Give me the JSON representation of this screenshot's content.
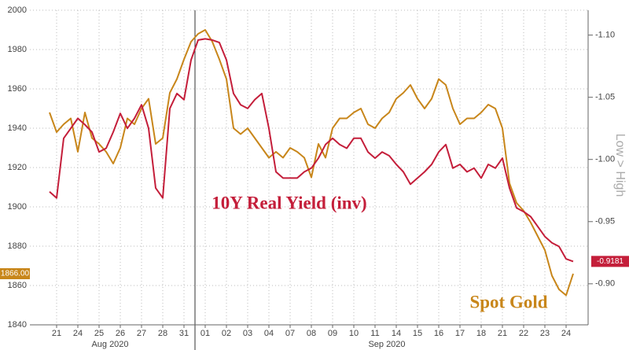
{
  "chart_data": {
    "type": "line",
    "categories": [
      null,
      "21",
      null,
      null,
      "24",
      null,
      null,
      "25",
      null,
      null,
      "26",
      null,
      null,
      "27",
      null,
      null,
      "28",
      null,
      null,
      "31",
      null,
      null,
      "01",
      null,
      null,
      "02",
      null,
      null,
      "03",
      null,
      null,
      "04",
      null,
      null,
      "07",
      null,
      null,
      "08",
      null,
      null,
      "09",
      null,
      null,
      "10",
      null,
      null,
      "11",
      null,
      null,
      "14",
      null,
      null,
      "15",
      null,
      null,
      "16",
      null,
      null,
      "17",
      null,
      null,
      "18",
      null,
      null,
      "21",
      null,
      null,
      "22",
      null,
      null,
      "23",
      null,
      null,
      "24",
      null
    ],
    "month_labels": [
      "Aug 2020",
      "Sep 2020"
    ],
    "series": [
      {
        "name": "Spot Gold",
        "color": "#c8861a",
        "end_label": "1866.00",
        "values": [
          1948,
          1938,
          1942,
          1945,
          1928,
          1948,
          1935,
          1932,
          1928,
          1922,
          1930,
          1945,
          1942,
          1950,
          1955,
          1932,
          1935,
          1958,
          1965,
          1975,
          1984,
          1988,
          1990,
          1984,
          1975,
          1965,
          1940,
          1937,
          1940,
          1935,
          1930,
          1925,
          1928,
          1925,
          1930,
          1928,
          1925,
          1915,
          1932,
          1925,
          1940,
          1945,
          1945,
          1948,
          1950,
          1942,
          1940,
          1945,
          1948,
          1955,
          1958,
          1962,
          1955,
          1950,
          1955,
          1965,
          1962,
          1950,
          1942,
          1945,
          1945,
          1948,
          1952,
          1950,
          1940,
          1912,
          1902,
          1898,
          1892,
          1885,
          1878,
          1865,
          1858,
          1855,
          1866
        ]
      },
      {
        "name": "10Y Real Yield (inv)",
        "color": "#c41e3a",
        "axis": "y2",
        "end_label": "-0.9181",
        "values": [
          -0.974,
          -0.969,
          -1.017,
          -1.025,
          -1.033,
          -1.028,
          -1.022,
          -1.006,
          -1.009,
          -1.022,
          -1.037,
          -1.025,
          -1.033,
          -1.044,
          -1.025,
          -0.977,
          -0.969,
          -1.041,
          -1.053,
          -1.048,
          -1.08,
          -1.096,
          -1.097,
          -1.096,
          -1.094,
          -1.08,
          -1.053,
          -1.044,
          -1.041,
          -1.048,
          -1.053,
          -1.025,
          -0.99,
          -0.985,
          -0.985,
          -0.985,
          -0.99,
          -0.993,
          -1.001,
          -1.012,
          -1.017,
          -1.012,
          -1.009,
          -1.017,
          -1.017,
          -1.006,
          -1.001,
          -1.006,
          -1.003,
          -0.996,
          -0.99,
          -0.98,
          -0.985,
          -0.99,
          -0.996,
          -1.006,
          -1.012,
          -0.993,
          -0.996,
          -0.99,
          -0.993,
          -0.985,
          -0.996,
          -0.993,
          -1.001,
          -0.977,
          -0.961,
          -0.958,
          -0.954,
          -0.946,
          -0.938,
          -0.933,
          -0.93,
          -0.92,
          -0.918
        ]
      }
    ],
    "ylim": [
      1840,
      2000
    ],
    "yticks": [
      1840,
      1860,
      1880,
      1900,
      1920,
      1940,
      1960,
      1980,
      2000
    ],
    "y2lim": [
      -0.867,
      -1.12
    ],
    "y2ticks": [
      {
        "value": -1.1,
        "label": "-1.10"
      },
      -1.05,
      {
        "value": -1.0,
        "label": "-1.00"
      },
      -0.95,
      {
        "value": -0.9,
        "label": "-0.90"
      }
    ],
    "y2label": "Low > High",
    "grid": true
  }
}
